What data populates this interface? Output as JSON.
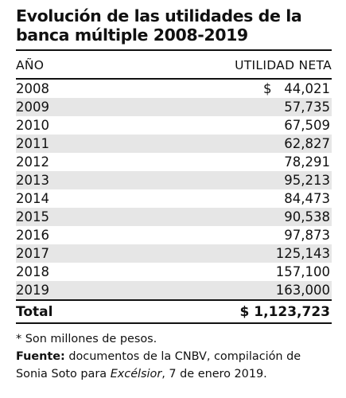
{
  "title": {
    "line1": "Evolución de las utilidades de la",
    "line2": "banca múltiple 2008-2019"
  },
  "columns": {
    "year": "AÑO",
    "value": "UTILIDAD NETA"
  },
  "currency_symbol": "$",
  "rows": [
    {
      "year": "2008",
      "value": "44,021"
    },
    {
      "year": "2009",
      "value": "57,735"
    },
    {
      "year": "2010",
      "value": "67,509"
    },
    {
      "year": "2011",
      "value": "62,827"
    },
    {
      "year": "2012",
      "value": "78,291"
    },
    {
      "year": "2013",
      "value": "95,213"
    },
    {
      "year": "2014",
      "value": "84,473"
    },
    {
      "year": "2015",
      "value": "90,538"
    },
    {
      "year": "2016",
      "value": "97,873"
    },
    {
      "year": "2017",
      "value": "125,143"
    },
    {
      "year": "2018",
      "value": "157,100"
    },
    {
      "year": "2019",
      "value": "163,000"
    }
  ],
  "total": {
    "label": "Total",
    "value": "$ 1,123,723"
  },
  "notes": {
    "footnote": "* Son millones de pesos.",
    "source_label": "Fuente:",
    "source_text_1": " documentos de la CNBV, compilación de Sonia Soto para ",
    "source_publication": "Excélsior",
    "source_text_2": ", 7 de enero 2019."
  },
  "colors": {
    "stripe": "#e6e6e6",
    "text": "#111111",
    "rule": "#111111"
  }
}
